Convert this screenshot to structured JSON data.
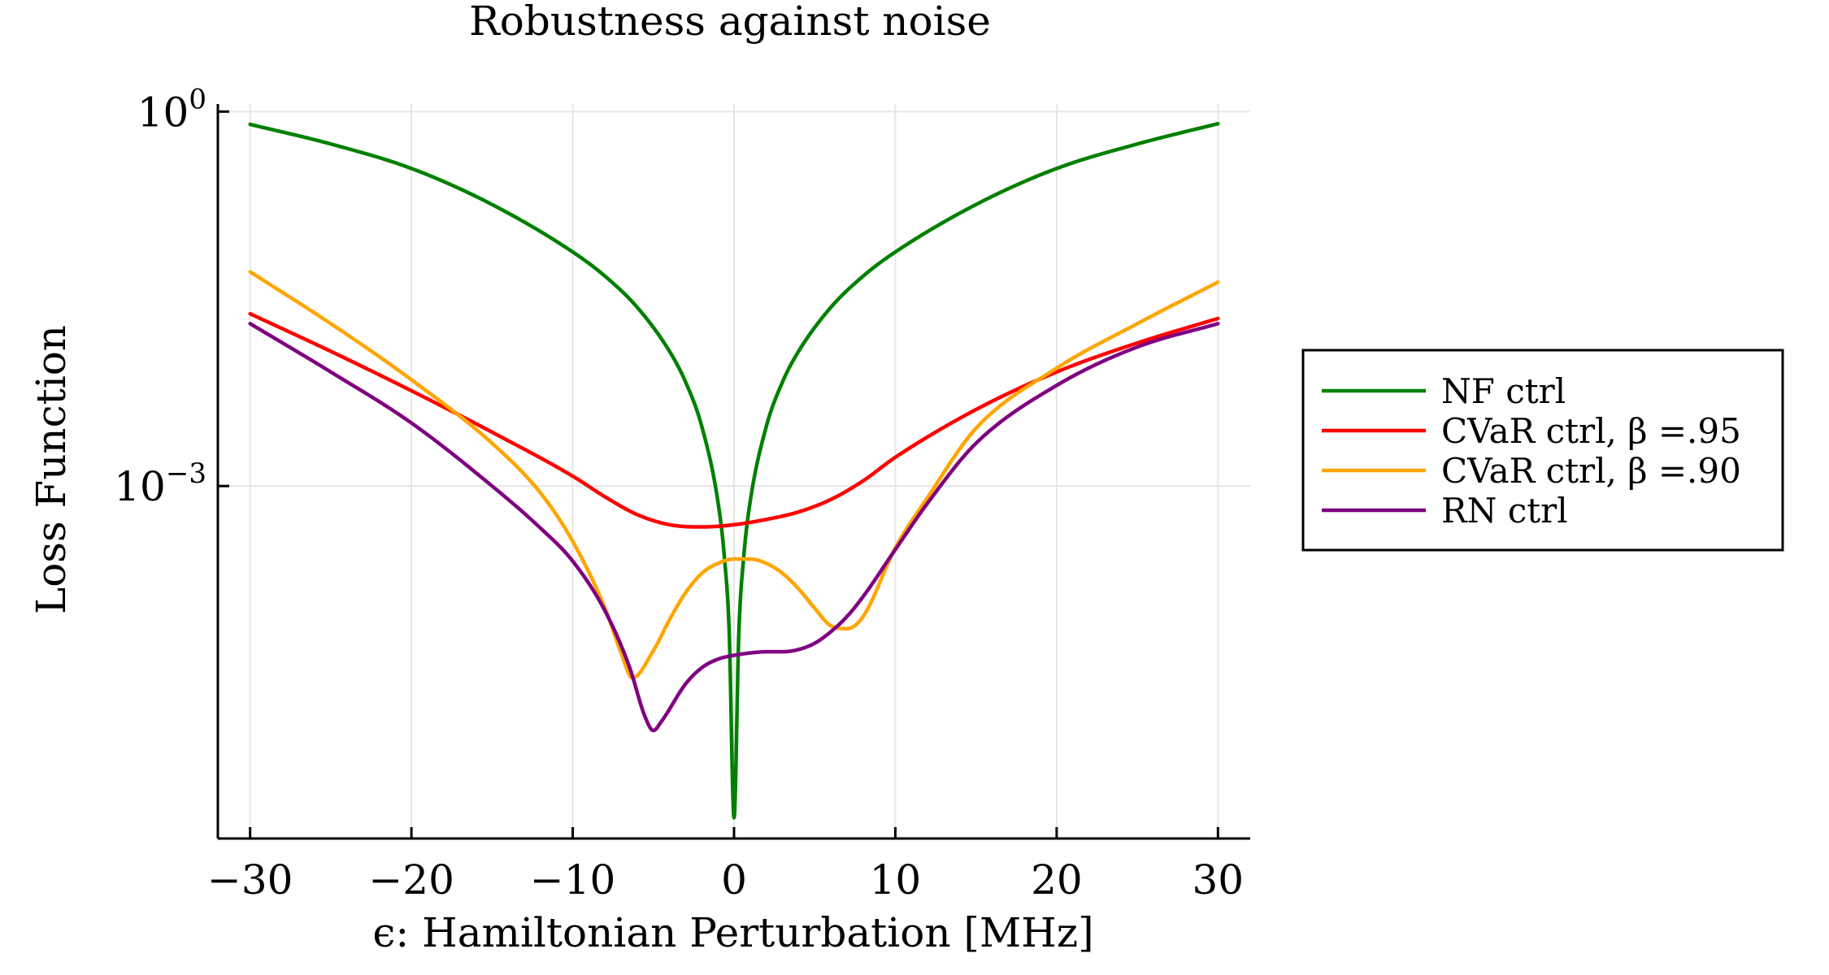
{
  "chart_data": {
    "type": "line",
    "title": "Robustness against noise",
    "xlabel": "ϵ: Hamiltonian Perturbation [MHz]",
    "ylabel": "Loss Function",
    "xlim": [
      -32,
      32
    ],
    "ylim": [
      1.5e-06,
      1.15
    ],
    "yscale": "log",
    "grid": true,
    "legend_position": "right",
    "x_ticks": [
      -30,
      -20,
      -10,
      0,
      10,
      20,
      30
    ],
    "x_tick_labels": [
      "−30",
      "−20",
      "−10",
      "0",
      "10",
      "20",
      "30"
    ],
    "y_ticks": [
      {
        "value": 1,
        "base": "10",
        "exponent": "0"
      },
      {
        "value": 0.001,
        "base": "10",
        "exponent": "−3"
      }
    ],
    "series": [
      {
        "name": "NF ctrl",
        "color": "#008000",
        "x": [
          -30,
          -25,
          -20,
          -15,
          -10,
          -8,
          -6,
          -4,
          -3,
          -2,
          -1,
          -0.6,
          -0.3,
          0,
          0.3,
          0.6,
          1,
          2,
          3,
          4,
          6,
          8,
          10,
          15,
          20,
          25,
          30
        ],
        "y": [
          0.79,
          0.55,
          0.35,
          0.18,
          0.075,
          0.048,
          0.027,
          0.012,
          0.0068,
          0.003,
          0.00075,
          0.00027,
          6.8e-05,
          2.2e-06,
          6.8e-05,
          0.00027,
          0.00075,
          0.003,
          0.0068,
          0.012,
          0.027,
          0.048,
          0.075,
          0.18,
          0.35,
          0.55,
          0.8
        ]
      },
      {
        "name": "CVaR ctrl, β =.95",
        "color": "#ff0000",
        "x": [
          -30,
          -25,
          -20,
          -15,
          -10,
          -8,
          -6,
          -4,
          -2,
          0,
          2,
          4,
          6,
          8,
          10,
          15,
          20,
          25,
          30
        ],
        "y": [
          0.024,
          0.012,
          0.0058,
          0.0027,
          0.0012,
          0.00082,
          0.00059,
          0.00049,
          0.00047,
          0.00049,
          0.00054,
          0.00062,
          0.00078,
          0.0011,
          0.0017,
          0.0041,
          0.0082,
          0.014,
          0.022
        ]
      },
      {
        "name": "CVaR ctrl, β =.90",
        "color": "#ffa500",
        "x": [
          -30,
          -25,
          -20,
          -15,
          -12,
          -10,
          -8,
          -7,
          -6.3,
          -5,
          -4,
          -3,
          -2,
          -1,
          0,
          1,
          2,
          3,
          4,
          5,
          6,
          7,
          8,
          10,
          12,
          15,
          20,
          25,
          30
        ],
        "y": [
          0.052,
          0.02,
          0.0071,
          0.0022,
          0.00088,
          0.00036,
          0.000105,
          4.6e-05,
          2.9e-05,
          4.8e-05,
          8.5e-05,
          0.00014,
          0.0002,
          0.00024,
          0.00026,
          0.00026,
          0.00024,
          0.0002,
          0.00015,
          0.000105,
          7.6e-05,
          7.2e-05,
          9e-05,
          0.00032,
          0.00081,
          0.0029,
          0.0088,
          0.02,
          0.043
        ]
      },
      {
        "name": "RN ctrl",
        "color": "#800080",
        "x": [
          -30,
          -25,
          -20,
          -15,
          -12,
          -10,
          -8,
          -6.5,
          -5.5,
          -5,
          -4.5,
          -3,
          -2,
          -1,
          0,
          1,
          2,
          3,
          4,
          5,
          6,
          7,
          8,
          10,
          12,
          15,
          20,
          25,
          30
        ],
        "y": [
          0.02,
          0.0082,
          0.0032,
          0.001,
          0.00046,
          0.00025,
          0.0001,
          3.6e-05,
          1.4e-05,
          1.1e-05,
          1.3e-05,
          2.6e-05,
          3.5e-05,
          4.1e-05,
          4.4e-05,
          4.6e-05,
          4.7e-05,
          4.7e-05,
          4.9e-05,
          5.5e-05,
          6.8e-05,
          9e-05,
          0.00013,
          0.00031,
          0.00073,
          0.0022,
          0.0064,
          0.013,
          0.02
        ]
      }
    ]
  },
  "legend": {
    "items": [
      {
        "label": "NF ctrl",
        "color": "#008000"
      },
      {
        "label": "CVaR ctrl, β =.95",
        "color": "#ff0000"
      },
      {
        "label": "CVaR ctrl, β =.90",
        "color": "#ffa500"
      },
      {
        "label": "RN ctrl",
        "color": "#800080"
      }
    ]
  }
}
